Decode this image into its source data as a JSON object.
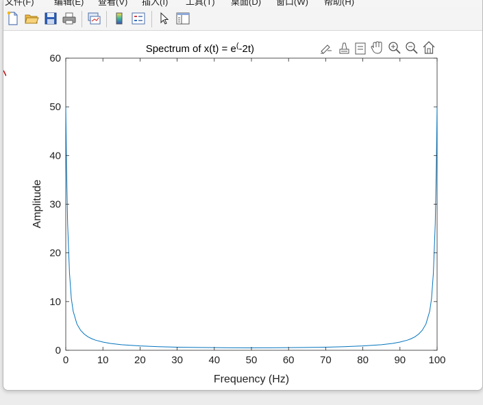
{
  "menubar": {
    "items": [
      "文件(F)",
      "编辑(E)",
      "查看(V)",
      "插入(I)",
      "工具(T)",
      "桌面(D)",
      "窗口(W)",
      "帮助(H)"
    ]
  },
  "toolbar": {
    "buttons": [
      {
        "name": "new-figure-icon"
      },
      {
        "name": "open-file-icon"
      },
      {
        "name": "save-icon"
      },
      {
        "name": "print-icon"
      },
      {
        "name": "link-plot-icon"
      },
      {
        "name": "colorbar-icon"
      },
      {
        "name": "legend-icon"
      },
      {
        "name": "edit-plot-arrow-icon"
      },
      {
        "name": "property-inspector-icon"
      }
    ]
  },
  "axes_toolbar": {
    "buttons": [
      "brush-icon",
      "data-tips-icon",
      "rotate-icon",
      "pan-icon",
      "zoom-in-icon",
      "zoom-out-icon",
      "home-icon"
    ]
  },
  "colors": {
    "line": "#0072bd",
    "axes": "#262626",
    "background": "#ffffff"
  },
  "chart_data": {
    "type": "line",
    "title": "Spectrum of x(t) = e^(-2t)",
    "title_main": "Spectrum of x(t) = e",
    "title_sup": "(",
    "title_rest": "-2t)",
    "xlabel": "Frequency (Hz)",
    "ylabel": "Amplitude",
    "xlim": [
      0,
      100
    ],
    "ylim": [
      0,
      60
    ],
    "xticks": [
      0,
      10,
      20,
      30,
      40,
      50,
      60,
      70,
      80,
      90,
      100
    ],
    "yticks": [
      0,
      10,
      20,
      30,
      40,
      50,
      60
    ],
    "grid": false,
    "series": [
      {
        "x": [
          0,
          0.2,
          0.5,
          1,
          1.5,
          2,
          3,
          4,
          5,
          6,
          7,
          8,
          10,
          12,
          15,
          20,
          25,
          30,
          35,
          40,
          45,
          50,
          55,
          60,
          65,
          70,
          75,
          80,
          85,
          88,
          90,
          92,
          93,
          94,
          95,
          96,
          97,
          98,
          98.5,
          99,
          99.5,
          99.8,
          100
        ],
        "y": [
          50,
          38,
          26,
          15.9,
          10.6,
          8.0,
          5.4,
          4.1,
          3.3,
          2.75,
          2.37,
          2.08,
          1.68,
          1.41,
          1.15,
          0.89,
          0.74,
          0.64,
          0.58,
          0.54,
          0.51,
          0.5,
          0.51,
          0.54,
          0.58,
          0.64,
          0.74,
          0.89,
          1.15,
          1.41,
          1.68,
          2.08,
          2.37,
          2.75,
          3.3,
          4.1,
          5.4,
          8.0,
          10.6,
          15.9,
          26,
          38,
          50
        ]
      }
    ]
  }
}
